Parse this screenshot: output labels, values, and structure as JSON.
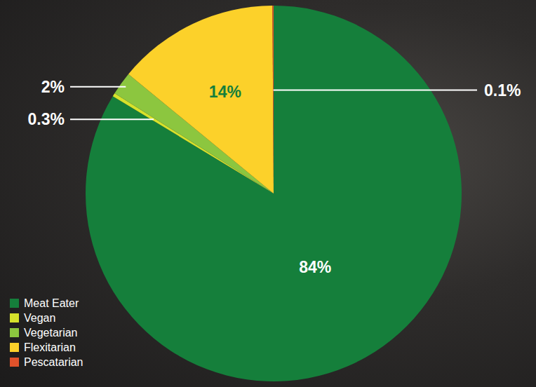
{
  "chart_data": {
    "type": "pie",
    "categories": [
      "Meat Eater",
      "Vegan",
      "Vegetarian",
      "Flexitarian",
      "Pescatarian"
    ],
    "values": [
      84,
      0.3,
      2,
      14,
      0.1
    ],
    "value_labels": [
      "84%",
      "0.3%",
      "2%",
      "14%",
      "0.1%"
    ],
    "colors": [
      "#157f3b",
      "#d6e22b",
      "#8cc63f",
      "#fcd12a",
      "#e0522b"
    ],
    "data_labels": true,
    "legend": "bottom-left"
  }
}
